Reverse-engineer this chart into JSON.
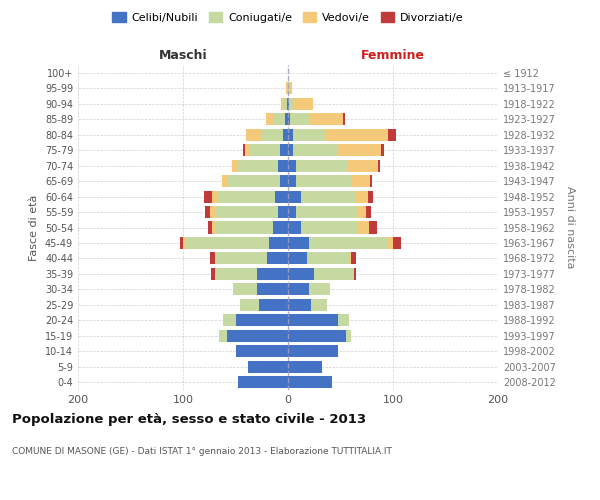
{
  "age_groups": [
    "0-4",
    "5-9",
    "10-14",
    "15-19",
    "20-24",
    "25-29",
    "30-34",
    "35-39",
    "40-44",
    "45-49",
    "50-54",
    "55-59",
    "60-64",
    "65-69",
    "70-74",
    "75-79",
    "80-84",
    "85-89",
    "90-94",
    "95-99",
    "100+"
  ],
  "birth_years": [
    "2008-2012",
    "2003-2007",
    "1998-2002",
    "1993-1997",
    "1988-1992",
    "1983-1987",
    "1978-1982",
    "1973-1977",
    "1968-1972",
    "1963-1967",
    "1958-1962",
    "1953-1957",
    "1948-1952",
    "1943-1947",
    "1938-1942",
    "1933-1937",
    "1928-1932",
    "1923-1927",
    "1918-1922",
    "1913-1917",
    "≤ 1912"
  ],
  "colors": {
    "celibi": "#4472C4",
    "coniugati": "#C6D9A0",
    "vedovi": "#F5C97A",
    "divorziati": "#C0393B"
  },
  "maschi": {
    "celibi": [
      48,
      38,
      50,
      58,
      50,
      28,
      30,
      30,
      20,
      18,
      14,
      10,
      12,
      8,
      10,
      8,
      5,
      3,
      1,
      0,
      0
    ],
    "coniugati": [
      0,
      0,
      0,
      8,
      12,
      18,
      22,
      40,
      50,
      80,
      55,
      60,
      55,
      50,
      38,
      28,
      20,
      10,
      3,
      1,
      0
    ],
    "vedovi": [
      0,
      0,
      0,
      0,
      0,
      0,
      0,
      0,
      0,
      2,
      3,
      4,
      5,
      5,
      5,
      5,
      15,
      8,
      3,
      1,
      0
    ],
    "divorziati": [
      0,
      0,
      0,
      0,
      0,
      0,
      0,
      3,
      4,
      3,
      4,
      5,
      8,
      0,
      0,
      2,
      0,
      0,
      0,
      0,
      0
    ]
  },
  "femmine": {
    "celibi": [
      42,
      32,
      48,
      55,
      48,
      22,
      20,
      25,
      18,
      20,
      12,
      8,
      12,
      8,
      8,
      5,
      5,
      2,
      1,
      0,
      0
    ],
    "coniugati": [
      0,
      0,
      0,
      5,
      10,
      15,
      20,
      38,
      40,
      75,
      55,
      58,
      52,
      52,
      48,
      42,
      30,
      18,
      5,
      1,
      0
    ],
    "vedovi": [
      0,
      0,
      0,
      0,
      0,
      0,
      0,
      0,
      2,
      5,
      10,
      8,
      12,
      18,
      30,
      42,
      60,
      32,
      18,
      3,
      0
    ],
    "divorziati": [
      0,
      0,
      0,
      0,
      0,
      0,
      0,
      2,
      5,
      8,
      8,
      5,
      5,
      2,
      2,
      2,
      8,
      2,
      0,
      0,
      0
    ]
  },
  "title": "Popolazione per età, sesso e stato civile - 2013",
  "subtitle": "COMUNE DI MASONE (GE) - Dati ISTAT 1° gennaio 2013 - Elaborazione TUTTITALIA.IT",
  "ylabel_left": "Fasce di età",
  "ylabel_right": "Anni di nascita",
  "xlabel_maschi": "Maschi",
  "xlabel_femmine": "Femmine",
  "legend_labels": [
    "Celibi/Nubili",
    "Coniugati/e",
    "Vedovi/e",
    "Divorziati/e"
  ],
  "xlim": 200,
  "bg_color": "#FFFFFF",
  "grid_color": "#CCCCCC"
}
